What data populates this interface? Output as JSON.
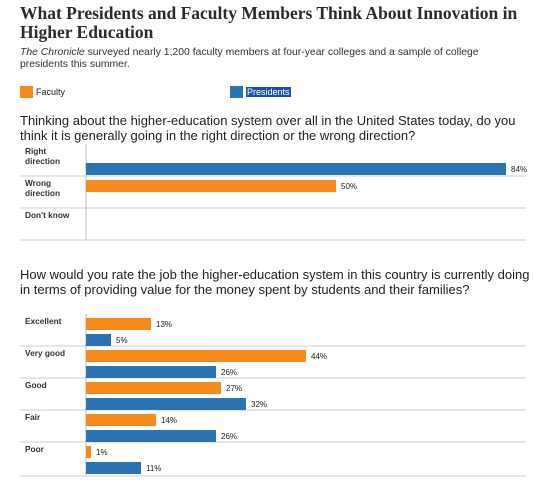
{
  "title": "What Presidents and Faculty Members Think About Innovation in Higher Education",
  "subtitle": {
    "italic": "The Chronicle",
    "rest": " surveyed nearly 1,200 faculty members at four-year colleges and a sample of college presidents this summer."
  },
  "legend": {
    "faculty": "Faculty",
    "presidents": "Presidents"
  },
  "colors": {
    "faculty": "#f68a1e",
    "presidents": "#2b73b3"
  },
  "chart_data": [
    {
      "type": "bar",
      "orientation": "horizontal",
      "title": "Thinking about the higher-education system over all in the United States today, do you think it is generally going in the right direction or the wrong direction?",
      "categories": [
        [
          "Right",
          "direction"
        ],
        [
          "Wrong",
          "direction"
        ],
        [
          "Don't know"
        ]
      ],
      "value_format": "percent",
      "xlim": [
        0,
        100
      ],
      "series": [
        {
          "name": "Faculty",
          "values": [
            null,
            50,
            null
          ]
        },
        {
          "name": "Presidents",
          "values": [
            84,
            null,
            null
          ]
        }
      ]
    },
    {
      "type": "bar",
      "orientation": "horizontal",
      "title": "How would you rate the job the higher-education system in this country is currently doing in terms of providing value for the money spent by students and their families?",
      "categories": [
        [
          "Excellent"
        ],
        [
          "Very good"
        ],
        [
          "Good"
        ],
        [
          "Fair"
        ],
        [
          "Poor"
        ]
      ],
      "value_format": "percent",
      "xlim": [
        0,
        100
      ],
      "series": [
        {
          "name": "Faculty",
          "values": [
            13,
            44,
            27,
            14,
            1
          ]
        },
        {
          "name": "Presidents",
          "values": [
            5,
            26,
            32,
            26,
            11
          ]
        }
      ]
    }
  ]
}
